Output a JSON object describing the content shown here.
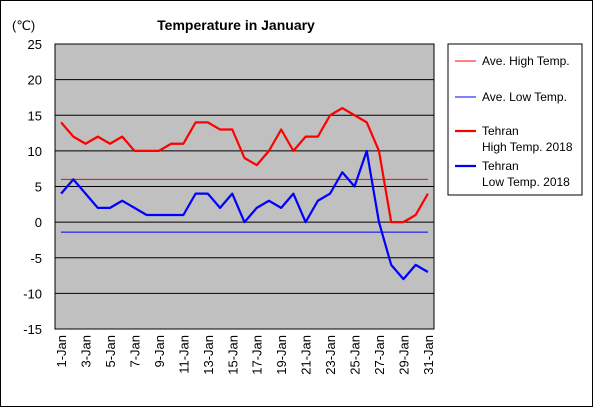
{
  "chart_data": {
    "type": "line",
    "title": "Temperature in January",
    "unit_label": "(℃)",
    "ylim": [
      -15,
      25
    ],
    "yticks": [
      25,
      20,
      15,
      10,
      5,
      0,
      -5,
      -10,
      -15
    ],
    "xtick_labels": [
      "1-Jan",
      "3-Jan",
      "5-Jan",
      "7-Jan",
      "9-Jan",
      "11-Jan",
      "13-Jan",
      "15-Jan",
      "17-Jan",
      "19-Jan",
      "21-Jan",
      "23-Jan",
      "25-Jan",
      "27-Jan",
      "29-Jan",
      "31-Jan"
    ],
    "grid": "horizontal",
    "plot_background": "#c0c0c0",
    "legend_position": "right",
    "series": [
      {
        "name": "Ave. High Temp.",
        "color": "#ff0000",
        "width": 1,
        "values": [
          6,
          6,
          6,
          6,
          6,
          6,
          6,
          6,
          6,
          6,
          6,
          6,
          6,
          6,
          6,
          6,
          6,
          6,
          6,
          6,
          6,
          6,
          6,
          6,
          6,
          6,
          6,
          6,
          6,
          6,
          6
        ]
      },
      {
        "name": "Ave. Low Temp.",
        "color": "#0000ff",
        "width": 1,
        "values": [
          -1.4,
          -1.4,
          -1.4,
          -1.4,
          -1.4,
          -1.4,
          -1.4,
          -1.4,
          -1.4,
          -1.4,
          -1.4,
          -1.4,
          -1.4,
          -1.4,
          -1.4,
          -1.4,
          -1.4,
          -1.4,
          -1.4,
          -1.4,
          -1.4,
          -1.4,
          -1.4,
          -1.4,
          -1.4,
          -1.4,
          -1.4,
          -1.4,
          -1.4,
          -1.4,
          -1.4
        ]
      },
      {
        "name": "Tehran High Temp. 2018",
        "legend_lines": [
          "Tehran",
          "High Temp. 2018"
        ],
        "color": "#ff0000",
        "width": 2.2,
        "values": [
          14,
          12,
          11,
          12,
          11,
          12,
          10,
          10,
          10,
          11,
          11,
          14,
          14,
          13,
          13,
          9,
          8,
          10,
          13,
          10,
          12,
          12,
          15,
          16,
          15,
          14,
          10,
          0,
          0,
          1,
          4
        ]
      },
      {
        "name": "Tehran Low Temp. 2018",
        "legend_lines": [
          "Tehran",
          "Low Temp. 2018"
        ],
        "color": "#0000ff",
        "width": 2.2,
        "values": [
          4,
          6,
          4,
          2,
          2,
          3,
          2,
          1,
          1,
          1,
          1,
          4,
          4,
          2,
          4,
          0,
          2,
          3,
          2,
          4,
          0,
          3,
          4,
          7,
          5,
          10,
          0,
          -6,
          -8,
          -6,
          -7
        ]
      }
    ]
  }
}
